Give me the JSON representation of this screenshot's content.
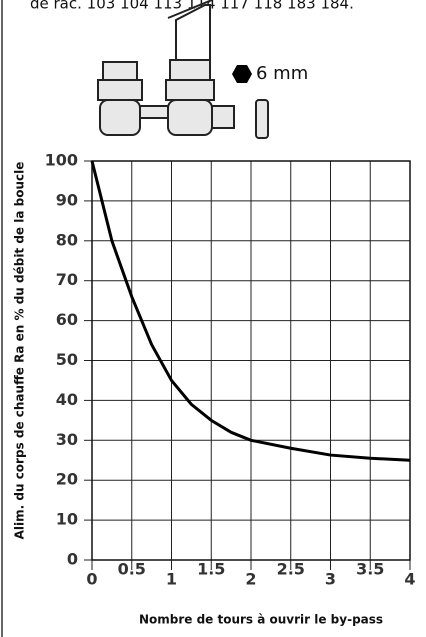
{
  "caption": "de rac. 103 104 113 114 117 118 183 184.",
  "hex_label": "6 mm",
  "chart_data": {
    "type": "line",
    "xlabel": "Nombre de tours à ouvrir le by-pass",
    "ylabel": "Alim. du corps de chauffe Ra en % du débit de la boucle",
    "x": [
      0,
      0.25,
      0.5,
      0.75,
      1,
      1.25,
      1.5,
      1.75,
      2,
      2.5,
      3,
      3.5,
      4
    ],
    "series": [
      {
        "color": "#000000",
        "values": [
          100,
          80,
          66,
          54,
          45,
          39,
          35,
          32,
          30,
          28,
          26.3,
          25.5,
          25
        ]
      }
    ],
    "xlim": [
      0,
      4
    ],
    "xticks": [
      0,
      0.5,
      1,
      1.5,
      2,
      2.5,
      3,
      3.5,
      4
    ],
    "ylim": [
      0,
      100
    ],
    "yticks": [
      0,
      10,
      20,
      30,
      40,
      50,
      60,
      70,
      80,
      90,
      100
    ],
    "grid": true
  }
}
